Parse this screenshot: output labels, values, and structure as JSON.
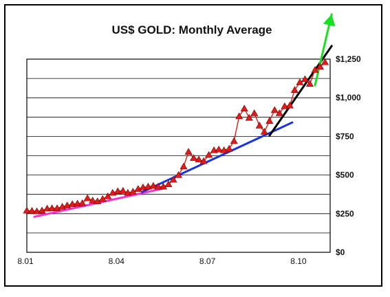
{
  "chart_data": {
    "type": "line",
    "title": "US$ GOLD: Monthly Average",
    "xlabel": "",
    "ylabel": "",
    "x_ticks": [
      "8.01",
      "8.04",
      "8.07",
      "8.10"
    ],
    "y_ticks": [
      "$0",
      "$250",
      "$500",
      "$750",
      "$1,000",
      "$1,250"
    ],
    "y_tick_values": [
      0,
      250,
      500,
      750,
      1000,
      1250
    ],
    "xlim": [
      2001.0,
      2011.0
    ],
    "ylim": [
      0,
      1250
    ],
    "grid": true,
    "series": [
      {
        "marker": "triangle",
        "color": "#e01b1b",
        "x": [
          2001.0,
          2001.17,
          2001.33,
          2001.5,
          2001.67,
          2001.83,
          2002.0,
          2002.17,
          2002.33,
          2002.5,
          2002.67,
          2002.83,
          2003.0,
          2003.17,
          2003.33,
          2003.5,
          2003.67,
          2003.83,
          2004.0,
          2004.17,
          2004.33,
          2004.5,
          2004.67,
          2004.83,
          2005.0,
          2005.17,
          2005.33,
          2005.5,
          2005.67,
          2005.83,
          2006.0,
          2006.17,
          2006.33,
          2006.5,
          2006.67,
          2006.83,
          2007.0,
          2007.17,
          2007.33,
          2007.5,
          2007.67,
          2007.83,
          2008.0,
          2008.17,
          2008.33,
          2008.5,
          2008.67,
          2008.83,
          2009.0,
          2009.17,
          2009.33,
          2009.5,
          2009.67,
          2009.83,
          2010.0,
          2010.17,
          2010.33,
          2010.5,
          2010.67,
          2010.83
        ],
        "values": [
          270,
          268,
          265,
          270,
          283,
          285,
          285,
          295,
          303,
          312,
          315,
          318,
          350,
          335,
          330,
          345,
          362,
          385,
          395,
          398,
          385,
          392,
          410,
          420,
          425,
          430,
          425,
          425,
          440,
          470,
          500,
          555,
          650,
          610,
          600,
          590,
          630,
          660,
          665,
          660,
          670,
          720,
          880,
          930,
          870,
          900,
          820,
          780,
          850,
          920,
          900,
          945,
          950,
          1050,
          1100,
          1120,
          1090,
          1180,
          1200,
          1230
        ]
      }
    ],
    "trendlines": [
      {
        "color": "#ff2fd0",
        "from": [
          2001.25,
          230
        ],
        "to": [
          2005.55,
          415
        ]
      },
      {
        "color": "#1a33e0",
        "from": [
          2004.8,
          390
        ],
        "to": [
          2009.75,
          840
        ]
      },
      {
        "color": "#000000",
        "from": [
          2009.0,
          755
        ],
        "to": [
          2011.05,
          1335
        ]
      },
      {
        "color": "#17e020",
        "from": [
          2010.5,
          1080
        ],
        "to": [
          2011.05,
          1540
        ]
      }
    ]
  }
}
